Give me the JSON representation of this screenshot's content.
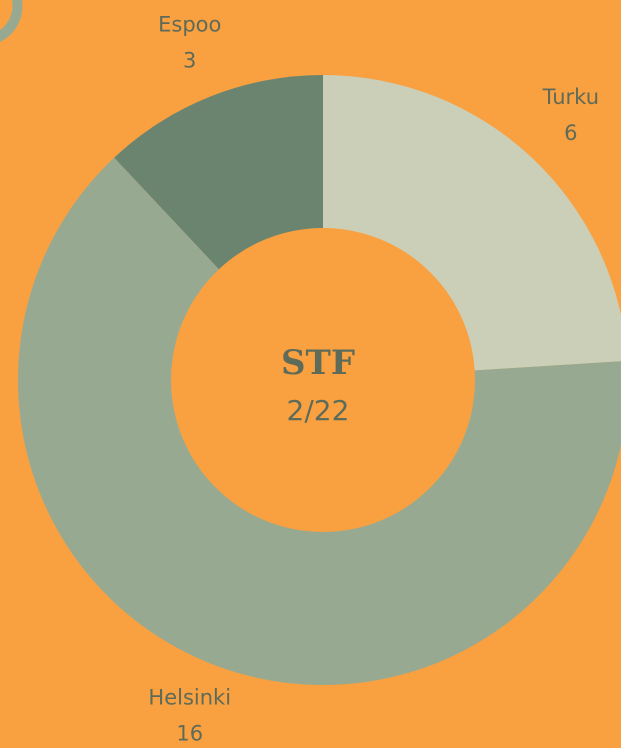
{
  "chart_data": {
    "type": "donut",
    "categories": [
      "Turku",
      "Helsinki",
      "Espoo"
    ],
    "values": [
      6,
      16,
      3
    ],
    "colors": [
      "#cbcfb8",
      "#97aa91",
      "#6a8470"
    ],
    "center_title": "STF",
    "center_subtitle": "2/22"
  }
}
